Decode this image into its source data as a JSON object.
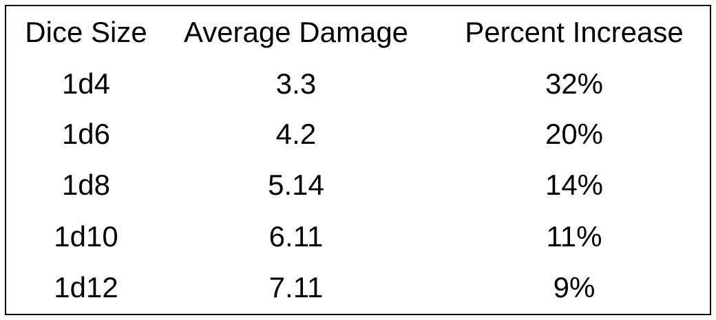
{
  "table": {
    "header": [
      "Dice Size",
      "Average Damage",
      "Percent Increase"
    ],
    "rows": [
      [
        "1d4",
        "3.3",
        "32%"
      ],
      [
        "1d6",
        "4.2",
        "20%"
      ],
      [
        "1d8",
        "5.14",
        "14%"
      ],
      [
        "1d10",
        "6.11",
        "11%"
      ],
      [
        "1d12",
        "7.11",
        "9%"
      ]
    ]
  }
}
